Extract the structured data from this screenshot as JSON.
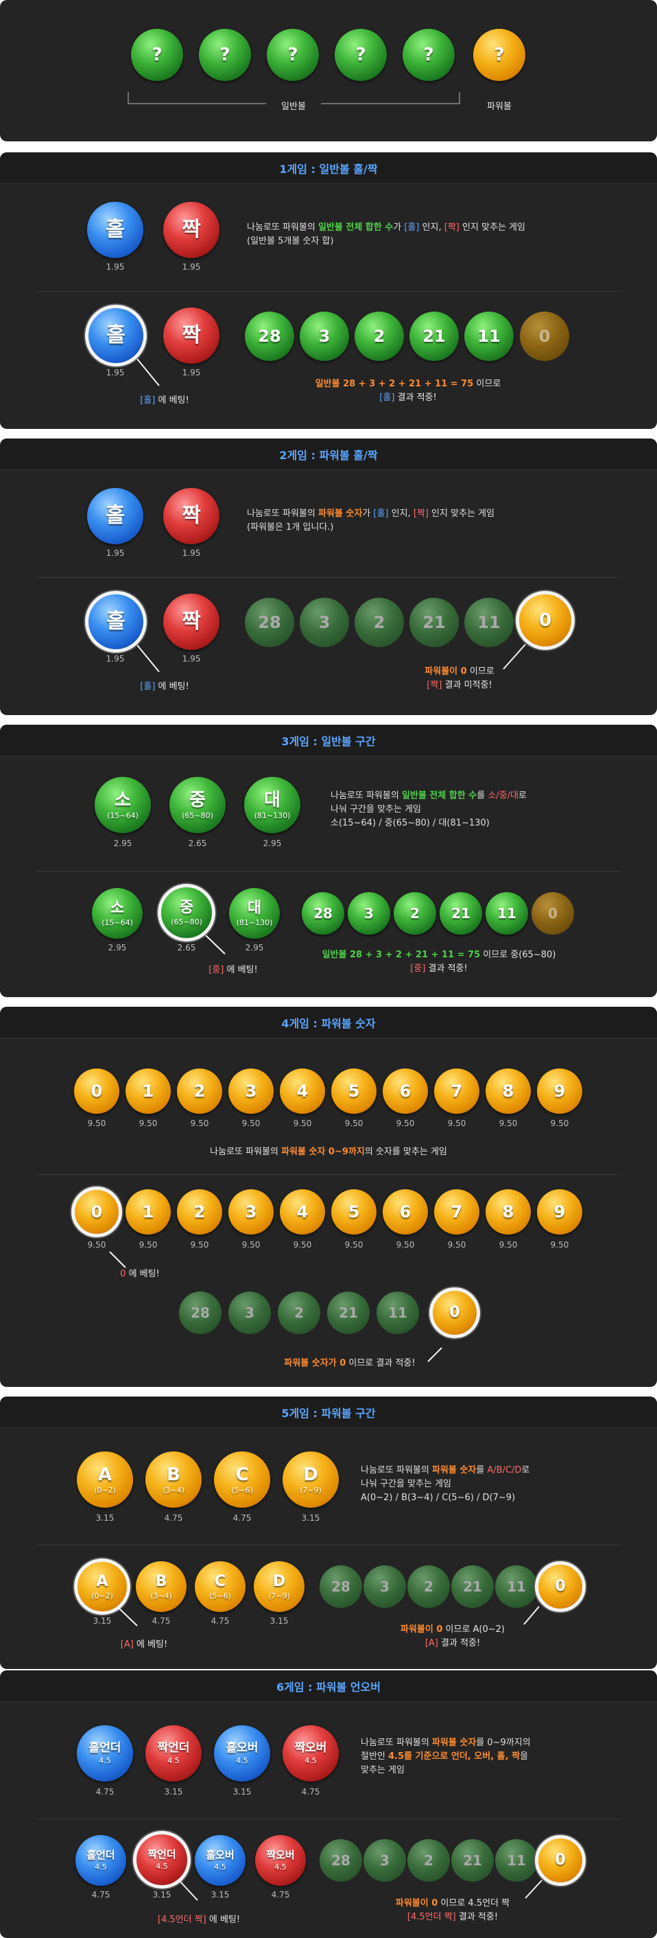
{
  "top": {
    "normal_label": "일반볼",
    "power_label": "파워볼",
    "q": "?"
  },
  "draw": {
    "normals": [
      "28",
      "3",
      "2",
      "21",
      "11"
    ],
    "power": "0"
  },
  "g1": {
    "title": "1게임 : 일반볼 홀/짝",
    "odd": "홀",
    "even": "짝",
    "odd_odds": "1.95",
    "even_odds": "1.95",
    "desc1_a": "나눔로또 파워볼의 ",
    "desc1_b": "일반볼 전체 합한 수",
    "desc1_c": "가 ",
    "desc1_d": "[홀]",
    "desc1_e": " 인지, ",
    "desc1_f": "[짝]",
    "desc1_g": " 인지 맞추는 게임",
    "desc2": "(일반볼 5개볼 숫자 합)",
    "bet_a": "[홀]",
    "bet_b": " 에 베팅!",
    "res1": "일반볼 28 + 3 + 2 + 21 + 11 = 75",
    "res1_b": " 이므로",
    "res2_a": "[홀]",
    "res2_b": " 결과 적중!"
  },
  "g2": {
    "title": "2게임 : 파워볼 홀/짝",
    "odd": "홀",
    "even": "짝",
    "odd_odds": "1.95",
    "even_odds": "1.95",
    "desc1_a": "나눔로또 파워볼의 ",
    "desc1_b": "파워볼 숫자",
    "desc1_c": "가 ",
    "desc1_d": "[홀]",
    "desc1_e": " 인지, ",
    "desc1_f": "[짝]",
    "desc1_g": " 인지 맞추는 게임",
    "desc2": "(파워볼은 1개 입니다.)",
    "bet_a": "[홀]",
    "bet_b": " 에 베팅!",
    "res1_a": "파워볼이 0",
    "res1_b": " 이므로",
    "res2_a": "[짝]",
    "res2_b": " 결과 미적중!"
  },
  "g3": {
    "title": "3게임 : 일반볼 구간",
    "balls": [
      {
        "label": "소",
        "sub": "(15~64)",
        "odds": "2.95"
      },
      {
        "label": "중",
        "sub": "(65~80)",
        "odds": "2.65"
      },
      {
        "label": "대",
        "sub": "(81~130)",
        "odds": "2.95"
      }
    ],
    "desc1_a": "나눔로또 파워볼의 ",
    "desc1_b": "일반볼 전체 합한 수",
    "desc1_c": "를 ",
    "desc1_d": "소/중/대",
    "desc1_e": "로",
    "desc2": "나눠 구간을 맞추는 게임",
    "desc3": "소(15~64) / 중(65~80) / 대(81~130)",
    "bet_a": "[중]",
    "bet_b": " 에 베팅!",
    "res1_a": "일반볼 28 + 3 + 2 + 21 + 11 = 75",
    "res1_b": " 이므로 중(65~80)",
    "res2_a": "[중]",
    "res2_b": " 결과 적중!"
  },
  "g4": {
    "title": "4게임 : 파워볼 숫자",
    "digits": [
      "0",
      "1",
      "2",
      "3",
      "4",
      "5",
      "6",
      "7",
      "8",
      "9"
    ],
    "odds": "9.50",
    "desc_a": "나눔로또 파워볼의 ",
    "desc_b": "파워볼 숫자 0~9까지",
    "desc_c": "의 숫자를 맞추는 게임",
    "bet_a": "0",
    "bet_b": " 에 베팅!",
    "res_a": "파워볼 숫자가 0",
    "res_b": " 이므로 결과 적중!"
  },
  "g5": {
    "title": "5게임 : 파워볼 구간",
    "balls": [
      {
        "label": "A",
        "sub": "(0~2)",
        "odds": "3.15"
      },
      {
        "label": "B",
        "sub": "(3~4)",
        "odds": "4.75"
      },
      {
        "label": "C",
        "sub": "(5~6)",
        "odds": "4.75"
      },
      {
        "label": "D",
        "sub": "(7~9)",
        "odds": "3.15"
      }
    ],
    "desc1_a": "나눔로또 파워볼의 ",
    "desc1_b": "파워볼 숫자",
    "desc1_c": "를 ",
    "desc1_d": "A/B/C/D",
    "desc1_e": "로",
    "desc2": "나눠 구간을 맞추는 게임",
    "desc3": "A(0~2) / B(3~4) / C(5~6) / D(7~9)",
    "bet_a": "[A]",
    "bet_b": " 에 베팅!",
    "res1_a": "파워볼이 0",
    "res1_b": " 이므로 A(0~2)",
    "res2_a": "[A]",
    "res2_b": " 결과 적중!"
  },
  "g6": {
    "title": "6게임 : 파워볼 언오버",
    "balls": [
      {
        "label": "홀언더",
        "sub": "4.5",
        "odds": "4.75"
      },
      {
        "label": "짝언더",
        "sub": "4.5",
        "odds": "3.15"
      },
      {
        "label": "홀오버",
        "sub": "4.5",
        "odds": "3.15"
      },
      {
        "label": "짝오버",
        "sub": "4.5",
        "odds": "4.75"
      }
    ],
    "desc1_a": "나눔로또 파워볼의 ",
    "desc1_b": "파워볼 숫자",
    "desc1_c": "를 0~9까지의",
    "desc2_a": "절반인 ",
    "desc2_b": "4.5를 기준으로 언더, 오버, 홀, 짝",
    "desc2_c": "을",
    "desc3": "맞추는 게임",
    "bet_a": "[4.5언더 짝]",
    "bet_b": " 에 베팅!",
    "res1_a": "파워볼이 0",
    "res1_b": " 이므로 4.5언더 짝",
    "res2_a": "[4.5언더 짝]",
    "res2_b": " 결과 적중!"
  },
  "colors": {
    "panel": "#242424",
    "header_text": "#5aa5ff",
    "green_text": "#4fd04a",
    "blue_text": "#5aa5ff",
    "red_text": "#ff6a6a",
    "orange_text": "#ff8c30"
  }
}
